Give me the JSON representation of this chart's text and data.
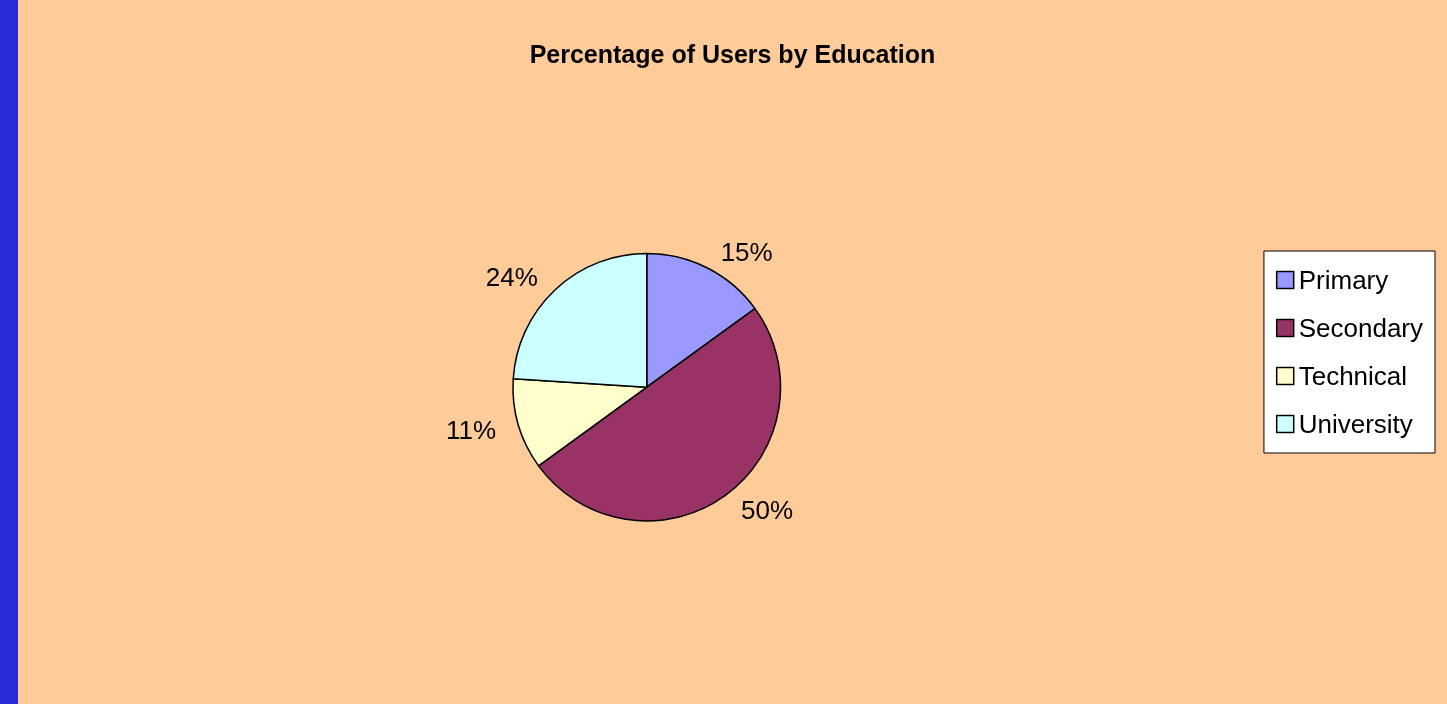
{
  "chart_data": {
    "type": "pie",
    "title": "Percentage of Users by Education",
    "categories": [
      "Primary",
      "Secondary",
      "Technical",
      "University"
    ],
    "values": [
      15,
      50,
      11,
      24
    ],
    "colors": [
      "#9999ff",
      "#993366",
      "#ffffcc",
      "#ccffff"
    ],
    "value_labels": [
      "15%",
      "50%",
      "11%",
      "24%"
    ],
    "legend": "right"
  }
}
